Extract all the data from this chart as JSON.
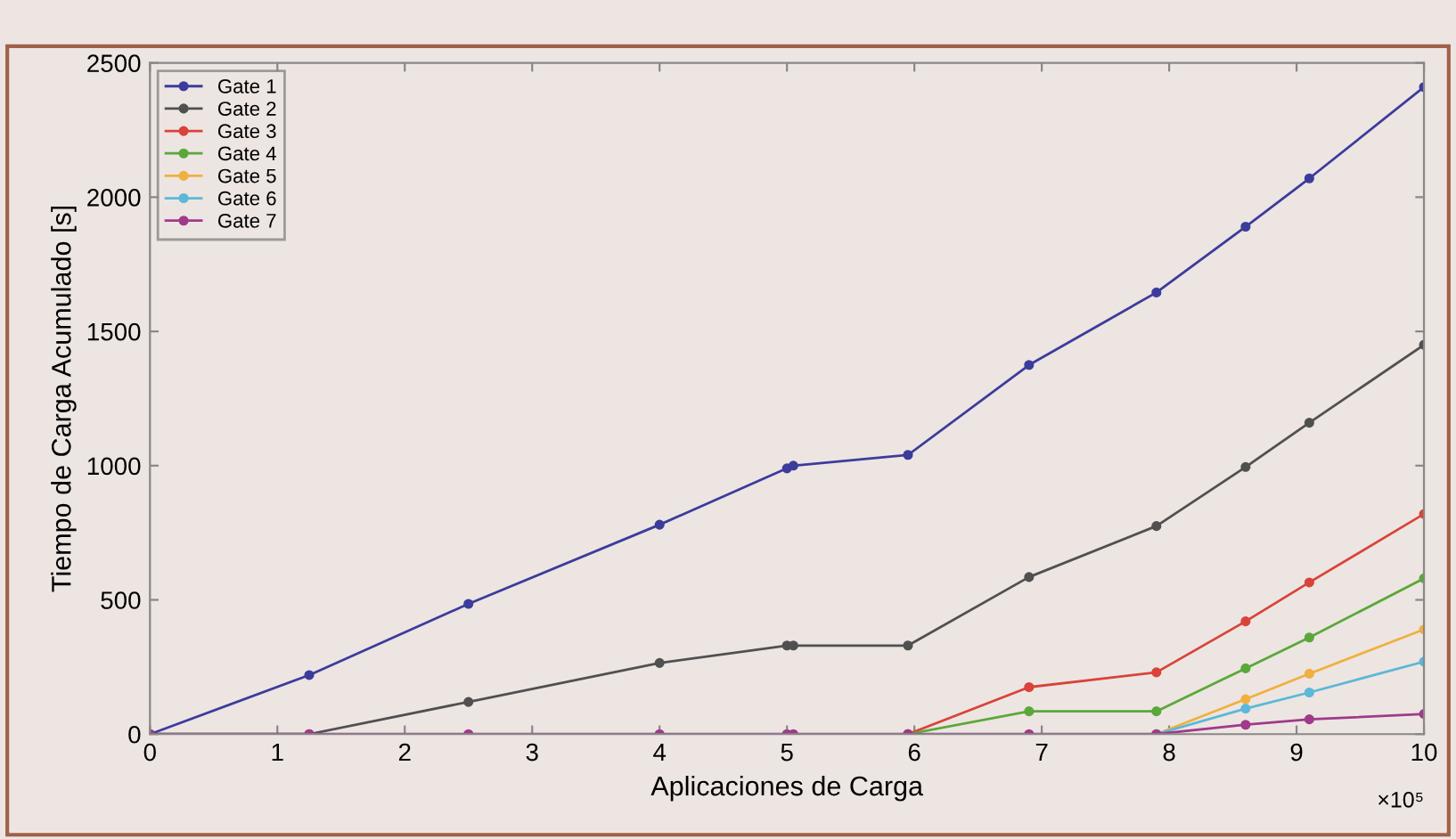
{
  "chart_data": {
    "type": "line",
    "xlabel": "Aplicaciones de Carga",
    "ylabel": "Tiempo de Carga Acumulado [s]",
    "annotations": [
      "×10⁵"
    ],
    "xlim": [
      0,
      10
    ],
    "xticks": [
      0,
      1,
      2,
      3,
      4,
      5,
      6,
      7,
      8,
      9,
      10
    ],
    "ylim": [
      0,
      2500
    ],
    "yticks": [
      0,
      500,
      1000,
      1500,
      2000,
      2500
    ],
    "grid": false,
    "legend": "top left",
    "marker": "circle",
    "line_style": "solid",
    "series": [
      {
        "name": "Gate 1",
        "color": "#3c3c9c",
        "x": [
          0,
          1.25,
          2.5,
          4.0,
          5.0,
          5.05,
          5.95,
          6.9,
          7.9,
          8.6,
          9.1,
          10
        ],
        "values": [
          0,
          220,
          485,
          780,
          990,
          1000,
          1040,
          1375,
          1645,
          1890,
          2070,
          2410
        ]
      },
      {
        "name": "Gate 2",
        "color": "#505050",
        "x": [
          0,
          1.25,
          2.5,
          4.0,
          5.0,
          5.05,
          5.95,
          6.9,
          7.9,
          8.6,
          9.1,
          10
        ],
        "values": [
          0,
          0,
          120,
          265,
          330,
          330,
          330,
          585,
          775,
          995,
          1160,
          1450
        ]
      },
      {
        "name": "Gate 3",
        "color": "#d9433a",
        "x": [
          5.95,
          6.9,
          7.9,
          8.6,
          9.1,
          10
        ],
        "values": [
          0,
          175,
          230,
          420,
          565,
          820
        ]
      },
      {
        "name": "Gate 4",
        "color": "#5aa83a",
        "x": [
          5.95,
          6.9,
          7.9,
          8.6,
          9.1,
          10
        ],
        "values": [
          0,
          85,
          85,
          245,
          360,
          580
        ]
      },
      {
        "name": "Gate 5",
        "color": "#f0b040",
        "x": [
          7.9,
          8.6,
          9.1,
          10
        ],
        "values": [
          0,
          130,
          225,
          390
        ]
      },
      {
        "name": "Gate 6",
        "color": "#5bb8d8",
        "x": [
          7.9,
          8.6,
          9.1,
          10
        ],
        "values": [
          0,
          95,
          155,
          270
        ]
      },
      {
        "name": "Gate 7",
        "color": "#a03a8a",
        "x": [
          0,
          1.25,
          2.5,
          4.0,
          5.0,
          5.05,
          5.95,
          6.9,
          7.9,
          8.6,
          9.1,
          10
        ],
        "values": [
          0,
          0,
          0,
          0,
          0,
          0,
          0,
          0,
          0,
          35,
          55,
          75
        ]
      }
    ]
  }
}
